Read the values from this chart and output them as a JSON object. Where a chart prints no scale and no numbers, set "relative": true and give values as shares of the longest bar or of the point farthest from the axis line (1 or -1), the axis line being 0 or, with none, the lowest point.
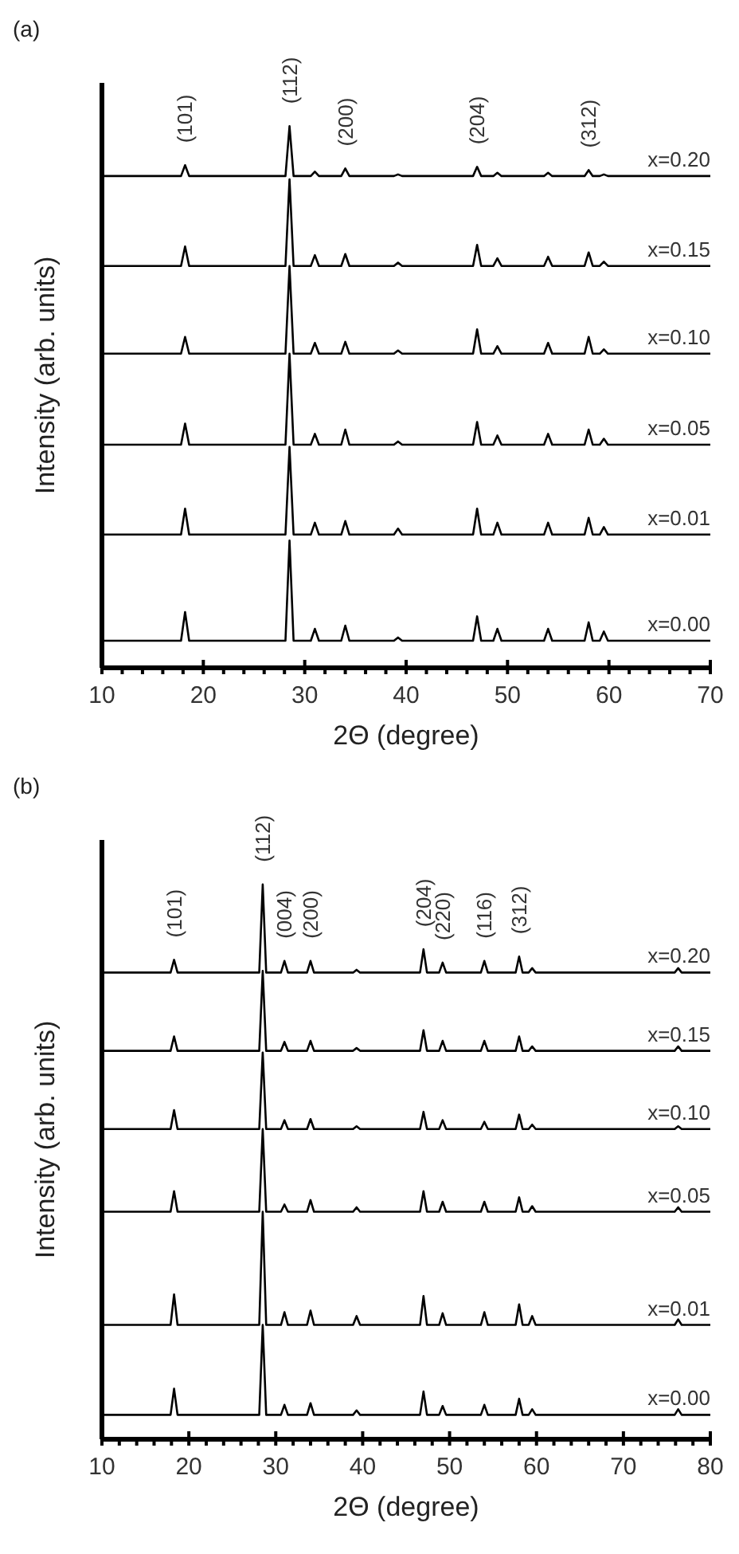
{
  "chart_data": [
    {
      "type": "line",
      "title": "(a)",
      "xlabel": "2Θ (degree)",
      "ylabel": "Intensity (arb. units)",
      "relative": true,
      "legend": false,
      "grid": false,
      "marker": "none",
      "line_style": "solid",
      "tick_labels": "x",
      "xlim": [
        10,
        70
      ],
      "xticks": [
        10,
        {
          "value": 12,
          "label": null
        },
        {
          "value": 14,
          "label": null
        },
        {
          "value": 16,
          "label": null
        },
        {
          "value": 18,
          "label": null
        },
        20,
        {
          "value": 22,
          "label": null
        },
        {
          "value": 24,
          "label": null
        },
        {
          "value": 26,
          "label": null
        },
        {
          "value": 28,
          "label": null
        },
        30,
        {
          "value": 32,
          "label": null
        },
        {
          "value": 34,
          "label": null
        },
        {
          "value": 36,
          "label": null
        },
        {
          "value": 38,
          "label": null
        },
        40,
        {
          "value": 42,
          "label": null
        },
        {
          "value": 44,
          "label": null
        },
        {
          "value": 46,
          "label": null
        },
        {
          "value": 48,
          "label": null
        },
        50,
        {
          "value": 52,
          "label": null
        },
        {
          "value": 54,
          "label": null
        },
        {
          "value": 56,
          "label": null
        },
        {
          "value": 58,
          "label": null
        },
        60,
        {
          "value": 62,
          "label": null
        },
        {
          "value": 64,
          "label": null
        },
        {
          "value": 66,
          "label": null
        },
        {
          "value": 68,
          "label": null
        },
        70
      ],
      "x": [
        10,
        17.8,
        18.2,
        18.6,
        28.1,
        28.5,
        28.9,
        30.6,
        31,
        31.4,
        33.6,
        34,
        34.4,
        38.8,
        39.2,
        39.6,
        46.6,
        47,
        47.4,
        48.6,
        49,
        49.4,
        53.6,
        54,
        54.4,
        57.6,
        58,
        58.4,
        59.1,
        59.5,
        59.9,
        70
      ],
      "series": [
        {
          "name": "x=0.20",
          "color": "#000000",
          "values": [
            0.908,
            0.908,
            0.928,
            0.908,
            0.908,
            1,
            0.908,
            0.908,
            0.916,
            0.908,
            0.908,
            0.922,
            0.908,
            0.908,
            0.911,
            0.908,
            0.908,
            0.925,
            0.908,
            0.908,
            0.914,
            0.908,
            0.908,
            0.914,
            0.908,
            0.908,
            0.919,
            0.908,
            0.908,
            0.911,
            0.908,
            0.908
          ]
        },
        {
          "name": "x=0.15",
          "color": "#000000",
          "values": [
            0.742,
            0.742,
            0.778,
            0.742,
            0.742,
            0.902,
            0.742,
            0.742,
            0.762,
            0.742,
            0.742,
            0.764,
            0.742,
            0.742,
            0.748,
            0.742,
            0.742,
            0.781,
            0.742,
            0.742,
            0.756,
            0.742,
            0.742,
            0.759,
            0.742,
            0.742,
            0.767,
            0.742,
            0.742,
            0.75,
            0.742,
            0.742
          ]
        },
        {
          "name": "x=0.10",
          "color": "#000000",
          "values": [
            0.58,
            0.58,
            0.611,
            0.58,
            0.58,
            0.742,
            0.58,
            0.58,
            0.6,
            0.58,
            0.58,
            0.602,
            0.58,
            0.58,
            0.586,
            0.58,
            0.58,
            0.625,
            0.58,
            0.58,
            0.594,
            0.58,
            0.58,
            0.6,
            0.58,
            0.58,
            0.611,
            0.58,
            0.58,
            0.588,
            0.58,
            0.58
          ]
        },
        {
          "name": "x=0.05",
          "color": "#000000",
          "values": [
            0.412,
            0.412,
            0.451,
            0.412,
            0.412,
            0.58,
            0.412,
            0.412,
            0.432,
            0.412,
            0.412,
            0.44,
            0.412,
            0.412,
            0.418,
            0.412,
            0.412,
            0.454,
            0.412,
            0.412,
            0.429,
            0.412,
            0.412,
            0.432,
            0.412,
            0.412,
            0.44,
            0.412,
            0.412,
            0.423,
            0.412,
            0.412
          ]
        },
        {
          "name": "x=0.01",
          "color": "#000000",
          "values": [
            0.246,
            0.246,
            0.294,
            0.246,
            0.246,
            0.408,
            0.246,
            0.246,
            0.268,
            0.246,
            0.246,
            0.271,
            0.246,
            0.246,
            0.257,
            0.246,
            0.246,
            0.294,
            0.246,
            0.246,
            0.268,
            0.246,
            0.246,
            0.268,
            0.246,
            0.246,
            0.277,
            0.246,
            0.246,
            0.26,
            0.246,
            0.246
          ]
        },
        {
          "name": "x=0.00",
          "color": "#000000",
          "values": [
            0.05,
            0.05,
            0.103,
            0.05,
            0.05,
            0.235,
            0.05,
            0.05,
            0.072,
            0.05,
            0.05,
            0.078,
            0.05,
            0.05,
            0.056,
            0.05,
            0.05,
            0.095,
            0.05,
            0.05,
            0.072,
            0.05,
            0.05,
            0.072,
            0.05,
            0.05,
            0.084,
            0.05,
            0.05,
            0.067,
            0.05,
            0.05
          ]
        }
      ],
      "annotations": [
        {
          "text": "(101)",
          "x": 18.2,
          "y": 0.928
        },
        {
          "text": "(112)",
          "x": 28.5,
          "y": 1
        },
        {
          "text": "(200)",
          "x": 34,
          "y": 0.922
        },
        {
          "text": "(204)",
          "x": 47,
          "y": 0.925
        },
        {
          "text": "(312)",
          "x": 58,
          "y": 0.919
        }
      ]
    },
    {
      "type": "line",
      "title": "(b)",
      "xlabel": "2Θ (degree)",
      "ylabel": "Intensity (arb. units)",
      "relative": true,
      "legend": false,
      "grid": false,
      "marker": "none",
      "line_style": "solid",
      "tick_labels": "x",
      "xlim": [
        10,
        80
      ],
      "xticks": [
        10,
        {
          "value": 12,
          "label": null
        },
        {
          "value": 14,
          "label": null
        },
        {
          "value": 16,
          "label": null
        },
        {
          "value": 18,
          "label": null
        },
        20,
        {
          "value": 22,
          "label": null
        },
        {
          "value": 24,
          "label": null
        },
        {
          "value": 26,
          "label": null
        },
        {
          "value": 28,
          "label": null
        },
        30,
        {
          "value": 32,
          "label": null
        },
        {
          "value": 34,
          "label": null
        },
        {
          "value": 36,
          "label": null
        },
        {
          "value": 38,
          "label": null
        },
        40,
        {
          "value": 42,
          "label": null
        },
        {
          "value": 44,
          "label": null
        },
        {
          "value": 46,
          "label": null
        },
        {
          "value": 48,
          "label": null
        },
        50,
        {
          "value": 52,
          "label": null
        },
        {
          "value": 54,
          "label": null
        },
        {
          "value": 56,
          "label": null
        },
        {
          "value": 58,
          "label": null
        },
        60,
        {
          "value": 62,
          "label": null
        },
        {
          "value": 64,
          "label": null
        },
        {
          "value": 66,
          "label": null
        },
        {
          "value": 68,
          "label": null
        },
        70,
        {
          "value": 72,
          "label": null
        },
        {
          "value": 74,
          "label": null
        },
        {
          "value": 76,
          "label": null
        },
        {
          "value": 78,
          "label": null
        },
        80
      ],
      "x": [
        10,
        17.9,
        18.3,
        18.7,
        28.1,
        28.5,
        28.9,
        30.6,
        31,
        31.4,
        33.6,
        34,
        34.4,
        38.9,
        39.3,
        39.7,
        46.6,
        47,
        47.4,
        48.8,
        49.2,
        49.6,
        53.6,
        54,
        54.4,
        57.6,
        58,
        58.4,
        59.1,
        59.5,
        59.9,
        75.9,
        76.3,
        76.7,
        80
      ],
      "series": [
        {
          "name": "x=0.20",
          "color": "#000000",
          "values": [
            0.841,
            0.841,
            0.864,
            0.841,
            0.841,
            1,
            0.841,
            0.841,
            0.862,
            0.841,
            0.841,
            0.862,
            0.841,
            0.841,
            0.846,
            0.841,
            0.841,
            0.883,
            0.841,
            0.841,
            0.859,
            0.841,
            0.841,
            0.862,
            0.841,
            0.841,
            0.87,
            0.841,
            0.841,
            0.849,
            0.841,
            0.841,
            0.849,
            0.841,
            0.841
          ]
        },
        {
          "name": "x=0.15",
          "color": "#000000",
          "values": [
            0.7,
            0.7,
            0.726,
            0.7,
            0.7,
            0.844,
            0.7,
            0.7,
            0.716,
            0.7,
            0.7,
            0.718,
            0.7,
            0.7,
            0.705,
            0.7,
            0.7,
            0.737,
            0.7,
            0.7,
            0.718,
            0.7,
            0.7,
            0.718,
            0.7,
            0.7,
            0.726,
            0.7,
            0.7,
            0.708,
            0.7,
            0.7,
            0.708,
            0.7,
            0.7
          ]
        },
        {
          "name": "x=0.10",
          "color": "#000000",
          "values": [
            0.559,
            0.559,
            0.593,
            0.559,
            0.559,
            0.697,
            0.559,
            0.559,
            0.575,
            0.559,
            0.559,
            0.577,
            0.559,
            0.559,
            0.564,
            0.559,
            0.559,
            0.59,
            0.559,
            0.559,
            0.575,
            0.559,
            0.559,
            0.572,
            0.559,
            0.559,
            0.585,
            0.559,
            0.559,
            0.567,
            0.559,
            0.559,
            0.564,
            0.559,
            0.559
          ]
        },
        {
          "name": "x=0.05",
          "color": "#000000",
          "values": [
            0.41,
            0.41,
            0.447,
            0.41,
            0.41,
            0.559,
            0.41,
            0.41,
            0.423,
            0.41,
            0.41,
            0.431,
            0.41,
            0.41,
            0.418,
            0.41,
            0.41,
            0.447,
            0.41,
            0.41,
            0.428,
            0.41,
            0.41,
            0.428,
            0.41,
            0.41,
            0.436,
            0.41,
            0.41,
            0.42,
            0.41,
            0.41,
            0.418,
            0.41,
            0.41
          ]
        },
        {
          "name": "x=0.01",
          "color": "#000000",
          "values": [
            0.206,
            0.206,
            0.261,
            0.206,
            0.206,
            0.41,
            0.206,
            0.206,
            0.229,
            0.206,
            0.206,
            0.232,
            0.206,
            0.206,
            0.222,
            0.206,
            0.206,
            0.258,
            0.206,
            0.206,
            0.227,
            0.206,
            0.206,
            0.229,
            0.206,
            0.206,
            0.243,
            0.206,
            0.206,
            0.222,
            0.206,
            0.206,
            0.216,
            0.206,
            0.206
          ]
        },
        {
          "name": "x=0.00",
          "color": "#000000",
          "values": [
            0.044,
            0.044,
            0.091,
            0.044,
            0.044,
            0.206,
            0.044,
            0.044,
            0.062,
            0.044,
            0.044,
            0.065,
            0.044,
            0.044,
            0.052,
            0.044,
            0.044,
            0.086,
            0.044,
            0.044,
            0.06,
            0.044,
            0.044,
            0.062,
            0.044,
            0.044,
            0.073,
            0.044,
            0.044,
            0.054,
            0.044,
            0.044,
            0.054,
            0.044,
            0.044
          ]
        }
      ],
      "annotations": [
        {
          "text": "(101)",
          "x": 18.3,
          "y": 0.864
        },
        {
          "text": "(112)",
          "x": 28.5,
          "y": 1
        },
        {
          "text": "(004)",
          "x": 31,
          "y": 0.862
        },
        {
          "text": "(200)",
          "x": 34,
          "y": 0.862
        },
        {
          "text": "(204)",
          "x": 47,
          "y": 0.883
        },
        {
          "text": "(220)",
          "x": 49.2,
          "y": 0.859
        },
        {
          "text": "(116)",
          "x": 54,
          "y": 0.862
        },
        {
          "text": "(312)",
          "x": 58,
          "y": 0.87
        }
      ]
    }
  ]
}
